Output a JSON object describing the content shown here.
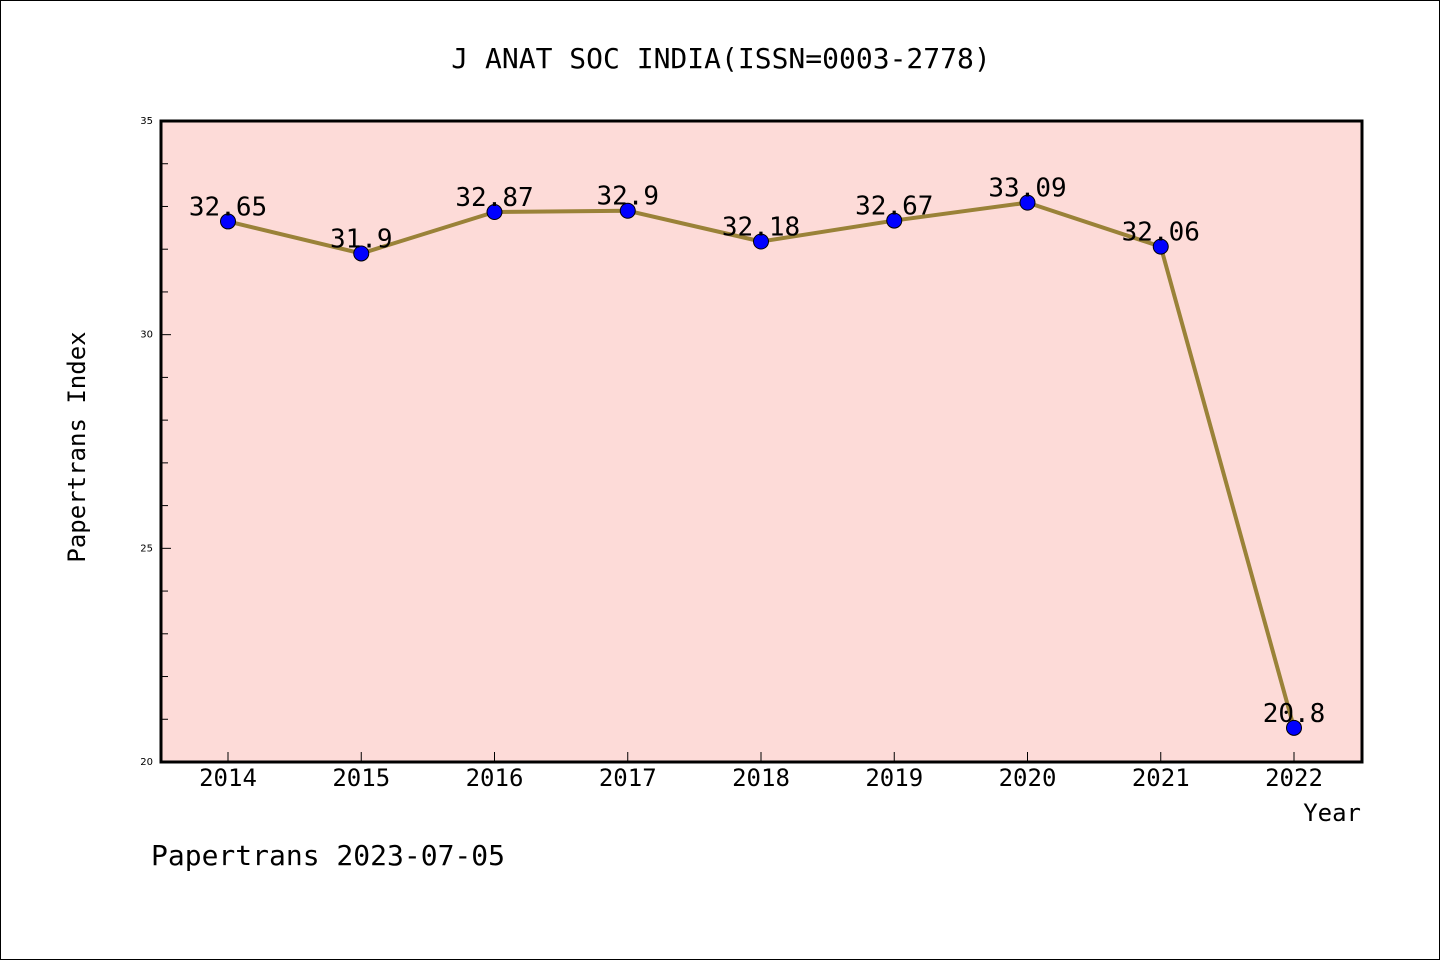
{
  "chart_data": {
    "type": "line",
    "title": "J ANAT SOC INDIA(ISSN=0003-2778)",
    "xlabel": "Year",
    "ylabel": "Papertrans Index",
    "categories": [
      "2014",
      "2015",
      "2016",
      "2017",
      "2018",
      "2019",
      "2020",
      "2021",
      "2022"
    ],
    "values": [
      32.65,
      31.9,
      32.87,
      32.9,
      32.18,
      32.67,
      33.09,
      32.06,
      20.8
    ],
    "data_labels": [
      "32.65",
      "31.9",
      "32.87",
      "32.9",
      "32.18",
      "32.67",
      "33.09",
      "32.06",
      "20.8"
    ],
    "ylim": [
      20,
      35
    ],
    "yticks": [
      "20",
      "25",
      "30",
      "35"
    ],
    "grid": false,
    "colors": {
      "plot_background": "#fddbd8",
      "line": "#9a8238",
      "marker": "#0000ff",
      "frame": "#000000"
    }
  },
  "footer": "Papertrans 2023-07-05"
}
